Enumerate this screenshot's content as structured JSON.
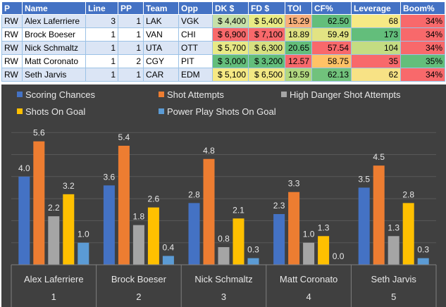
{
  "table": {
    "headers": [
      "P",
      "Name",
      "Line",
      "PP",
      "Team",
      "Opp",
      "DK $",
      "FD $",
      "TOI",
      "CF%",
      "Leverage",
      "Boom%"
    ],
    "rows": [
      [
        "RW",
        "Alex Laferriere",
        "3",
        "1",
        "LAK",
        "VGK",
        "$ 4,400",
        "$ 5,400",
        "15.29",
        "62.50",
        "68",
        "34%"
      ],
      [
        "RW",
        "Brock Boeser",
        "1",
        "1",
        "VAN",
        "CHI",
        "$ 6,900",
        "$ 7,100",
        "18.89",
        "59.49",
        "173",
        "34%"
      ],
      [
        "RW",
        "Nick Schmaltz",
        "1",
        "1",
        "UTA",
        "OTT",
        "$ 5,700",
        "$ 6,300",
        "20.65",
        "57.54",
        "104",
        "34%"
      ],
      [
        "RW",
        "Matt Coronato",
        "1",
        "2",
        "CGY",
        "PIT",
        "$ 3,000",
        "$ 3,200",
        "12.57",
        "58.75",
        "35",
        "35%"
      ],
      [
        "RW",
        "Seth Jarvis",
        "1",
        "1",
        "CAR",
        "EDM",
        "$ 5,100",
        "$ 6,500",
        "19.59",
        "62.13",
        "62",
        "34%"
      ]
    ],
    "cell_colors": [
      [
        "",
        "",
        "",
        "",
        "",
        "",
        "#c6e0a8",
        "#e9eb84",
        "#f8b07c",
        "#63be7b",
        "#f6e985",
        "#f8696b"
      ],
      [
        "",
        "",
        "",
        "",
        "",
        "",
        "#f8696b",
        "#f8696b",
        "#dfe182",
        "#e2e383",
        "#63be7b",
        "#f8696b"
      ],
      [
        "",
        "",
        "",
        "",
        "",
        "",
        "#e8ea86",
        "#d7e080",
        "#63be7b",
        "#f8696b",
        "#c4dc82",
        "#f8696b"
      ],
      [
        "",
        "",
        "",
        "",
        "",
        "",
        "#63be7b",
        "#63be7b",
        "#f8696b",
        "#ffc266",
        "#f8696b",
        "#63be7b"
      ],
      [
        "",
        "",
        "",
        "",
        "",
        "",
        "#f6e984",
        "#f2e884",
        "#b2d880",
        "#71c27c",
        "#f7e285",
        "#f8696b"
      ]
    ]
  },
  "chart_data": {
    "type": "bar",
    "title": "",
    "xlabel": "",
    "ylabel": "",
    "ylim": [
      0,
      6.5
    ],
    "categories": [
      "Alex Laferriere",
      "Brock Boeser",
      "Nick Schmaltz",
      "Matt Coronato",
      "Seth Jarvis"
    ],
    "category_indices": [
      "1",
      "2",
      "3",
      "4",
      "5"
    ],
    "series": [
      {
        "name": "Scoring Chances",
        "color": "#4472c4",
        "values": [
          4.0,
          3.6,
          2.8,
          2.3,
          3.5
        ]
      },
      {
        "name": "Shot Attempts",
        "color": "#ed7d31",
        "values": [
          5.6,
          5.4,
          4.8,
          3.3,
          4.5
        ]
      },
      {
        "name": "High Danger Shot Attempts",
        "color": "#a5a5a5",
        "values": [
          2.2,
          1.8,
          0.8,
          1.0,
          1.3
        ]
      },
      {
        "name": "Shots On Goal",
        "color": "#ffc000",
        "values": [
          3.2,
          2.6,
          2.1,
          1.3,
          2.8
        ]
      },
      {
        "name": "Power Play Shots On Goal",
        "color": "#5b9bd5",
        "values": [
          1.0,
          0.4,
          0.3,
          0.0,
          0.3
        ]
      }
    ],
    "legend": "top-left",
    "grid": true,
    "background": "#404040"
  }
}
